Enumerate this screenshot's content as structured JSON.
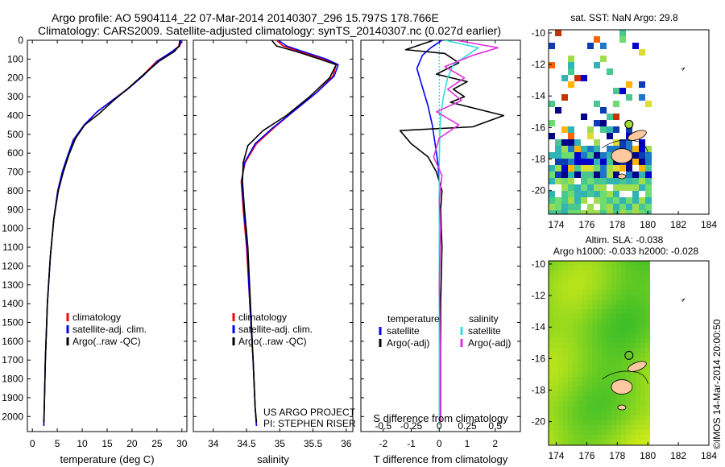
{
  "header": {
    "line1": "Argo profile: AO 5904114_22 07-Mar-2014 20140307_296 15.797S 178.766E",
    "line2": "Climatology: CARS2009. Satellite-adjusted climatology: synTS_20140307.nc (0.027d earlier)"
  },
  "credits": {
    "project": "US ARGO PROJECT",
    "pi": "PI: STEPHEN RISER"
  },
  "side_stamp": "©IMOS 14-Mar-2014 20:00:50",
  "colors": {
    "climatology": "#ff0000",
    "satellite": "#0000ff",
    "argo": "#000000",
    "sal_satellite": "#33dddd",
    "sal_argo": "#dd33dd",
    "land": "#ffc8a0"
  },
  "chart_data": [
    {
      "type": "line",
      "xlabel": "temperature (deg C)",
      "ylabel": "",
      "xlim": [
        -1,
        31
      ],
      "ylim": [
        2080,
        0
      ],
      "xticks": [
        0,
        5,
        10,
        15,
        20,
        25,
        30
      ],
      "yticks": [
        0,
        100,
        200,
        300,
        400,
        500,
        600,
        700,
        800,
        900,
        1000,
        1100,
        1200,
        1300,
        1400,
        1500,
        1600,
        1700,
        1800,
        1900,
        2000
      ],
      "legend": [
        "climatology",
        "satellite-adj. clim.",
        "Argo(..raw -QC)"
      ],
      "series": [
        {
          "name": "climatology",
          "x": [
            29.9,
            29.6,
            28.2,
            25,
            22,
            19,
            16,
            13,
            10.5,
            8.3,
            7,
            6,
            5.1,
            4.3,
            3.6,
            3,
            2.6,
            2.4,
            2.3
          ],
          "y": [
            0,
            30,
            60,
            110,
            190,
            260,
            320,
            380,
            450,
            530,
            620,
            700,
            800,
            950,
            1150,
            1400,
            1700,
            1950,
            2050
          ]
        },
        {
          "name": "satellite-adj. clim.",
          "x": [
            29.8,
            29.5,
            28,
            25.2,
            22.2,
            19.1,
            16,
            13,
            10.4,
            8.2,
            7,
            6,
            5.1,
            4.3,
            3.6,
            3,
            2.6,
            2.4,
            2.3
          ],
          "y": [
            0,
            30,
            60,
            110,
            190,
            260,
            320,
            380,
            450,
            530,
            620,
            700,
            800,
            950,
            1150,
            1400,
            1700,
            1950,
            2050
          ]
        },
        {
          "name": "Argo(..raw -QC)",
          "x": [
            29.6,
            29.4,
            28.5,
            25.5,
            22,
            19,
            16.3,
            13.4,
            10.5,
            8.7,
            7.3,
            6.2,
            5.2,
            4.3,
            3.6,
            3,
            2.6,
            2.4,
            2.3
          ],
          "y": [
            0,
            30,
            60,
            110,
            190,
            260,
            320,
            390,
            450,
            520,
            610,
            700,
            800,
            950,
            1150,
            1400,
            1700,
            1950,
            2030
          ]
        }
      ]
    },
    {
      "type": "line",
      "xlabel": "salinity",
      "ylabel": "",
      "xlim": [
        33.7,
        36.1
      ],
      "ylim": [
        2080,
        0
      ],
      "xticks": [
        34,
        34.5,
        35,
        35.5,
        36
      ],
      "legend": [
        "climatology",
        "satellite-adj. clim.",
        "Argo(..raw -QC)"
      ],
      "series": [
        {
          "name": "climatology",
          "x": [
            34.95,
            35.05,
            35.3,
            35.65,
            35.85,
            35.8,
            35.55,
            35.2,
            34.9,
            34.65,
            34.48,
            34.42,
            34.45,
            34.5,
            34.55,
            34.6,
            34.63,
            34.65
          ],
          "y": [
            0,
            30,
            60,
            100,
            130,
            190,
            280,
            380,
            470,
            550,
            650,
            750,
            900,
            1100,
            1400,
            1700,
            1950,
            2050
          ]
        },
        {
          "name": "satellite-adj. clim.",
          "x": [
            34.98,
            35.1,
            35.35,
            35.7,
            35.88,
            35.82,
            35.55,
            35.2,
            34.88,
            34.63,
            34.47,
            34.43,
            34.46,
            34.51,
            34.55,
            34.6,
            34.63,
            34.65
          ],
          "y": [
            0,
            30,
            60,
            100,
            130,
            190,
            280,
            380,
            470,
            550,
            650,
            750,
            900,
            1100,
            1400,
            1700,
            1950,
            2050
          ]
        },
        {
          "name": "Argo(..raw -QC)",
          "x": [
            34.88,
            34.95,
            35.25,
            35.6,
            35.85,
            35.75,
            35.45,
            35.1,
            34.75,
            34.52,
            34.45,
            34.44,
            34.47,
            34.52,
            34.56,
            34.6,
            34.63,
            34.65
          ],
          "y": [
            0,
            30,
            60,
            100,
            130,
            200,
            300,
            400,
            480,
            560,
            650,
            750,
            900,
            1100,
            1400,
            1700,
            1950,
            2030
          ]
        }
      ]
    },
    {
      "type": "line",
      "xlabel": "T difference from climatology",
      "xlabel2": "S difference from climatology",
      "ylabel": "",
      "xlim": [
        -2.8,
        2.9
      ],
      "ylim": [
        2080,
        0
      ],
      "xticks": [
        -2,
        -1,
        0,
        1,
        2
      ],
      "xticks2": [
        "-0.5",
        "-0.25",
        "0",
        "0.25",
        "0.5"
      ],
      "legend_titles": [
        "temperature",
        "salinity"
      ],
      "legend": [
        "satellite",
        "Argo(-adj)",
        "satellite",
        "Argo(-adj)"
      ],
      "series": [
        {
          "name": "satellite",
          "group": "temperature",
          "x": [
            0.1,
            -0.3,
            -0.6,
            -0.8,
            -0.6,
            -0.4,
            -0.25,
            -0.15,
            -0.05,
            0,
            0,
            0,
            0,
            0,
            0
          ],
          "y": [
            0,
            40,
            80,
            150,
            250,
            350,
            450,
            550,
            650,
            750,
            900,
            1100,
            1400,
            1700,
            2030
          ]
        },
        {
          "name": "Argo(-adj)",
          "group": "temperature",
          "x": [
            -0.2,
            -1.2,
            0.2,
            0.7,
            -0.1,
            1,
            0.5,
            0.9,
            0.4,
            2.3,
            1.2,
            -1.4,
            -1,
            -0.4,
            -0.1,
            0.1,
            0.05,
            0.1,
            0.05,
            0.05,
            0.05
          ],
          "y": [
            0,
            50,
            70,
            120,
            180,
            220,
            260,
            300,
            330,
            400,
            460,
            480,
            550,
            620,
            700,
            800,
            900,
            1100,
            1400,
            1700,
            2030
          ]
        },
        {
          "name": "satellite",
          "group": "salinity",
          "x": [
            0.2,
            1.4,
            1,
            0.5,
            0.3,
            0.15,
            0.05,
            0.02,
            0,
            0,
            0,
            0,
            0
          ],
          "y": [
            0,
            40,
            80,
            130,
            200,
            300,
            400,
            500,
            650,
            800,
            1100,
            1500,
            2030
          ]
        },
        {
          "name": "Argo(-adj)",
          "group": "salinity",
          "x": [
            0.6,
            2.1,
            1.2,
            0.2,
            0.9,
            0.3,
            0.8,
            -0.1,
            0.7,
            0,
            -0.2,
            0.1,
            0,
            0.05,
            0,
            0.05,
            0.05
          ],
          "y": [
            0,
            40,
            80,
            140,
            200,
            260,
            320,
            380,
            450,
            520,
            620,
            720,
            850,
            1000,
            1300,
            1700,
            2030
          ]
        }
      ]
    },
    {
      "type": "heatmap",
      "title": "sat. SST: NaN Argo: 29.8",
      "xlim": [
        173.5,
        184
      ],
      "ylim": [
        -21.5,
        -9.8
      ],
      "xticks": [
        174,
        176,
        178,
        180,
        182,
        184
      ],
      "yticks": [
        -10,
        -12,
        -14,
        -16,
        -18,
        -20
      ]
    },
    {
      "type": "heatmap",
      "title": "Altim. SLA: -0.038",
      "subtitle": "Argo h1000: -0.033 h2000: -0.028",
      "xlim": [
        173.5,
        184
      ],
      "ylim": [
        -21.5,
        -9.8
      ],
      "xticks": [
        174,
        176,
        178,
        180,
        182,
        184
      ],
      "yticks": [
        -10,
        -12,
        -14,
        -16,
        -18,
        -20
      ]
    }
  ]
}
